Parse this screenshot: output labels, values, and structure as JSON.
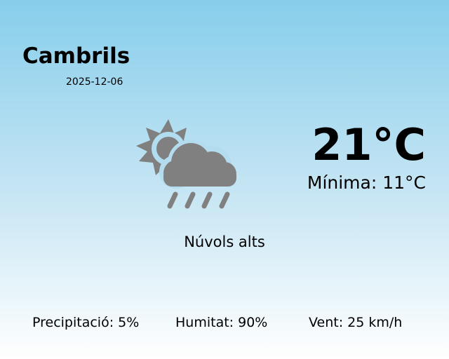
{
  "location": {
    "city": "Cambrils",
    "date": "2025-12-06"
  },
  "weather": {
    "temperature": "21°C",
    "minimum": "Mínima: 11°C",
    "description": "Núvols alts",
    "icon": "sun-cloud-rain-icon",
    "icon_color": "#808080"
  },
  "stats": {
    "precipitation": "Precipitació: 5%",
    "humidity": "Humitat: 90%",
    "wind": "Vent: 25 km/h"
  }
}
